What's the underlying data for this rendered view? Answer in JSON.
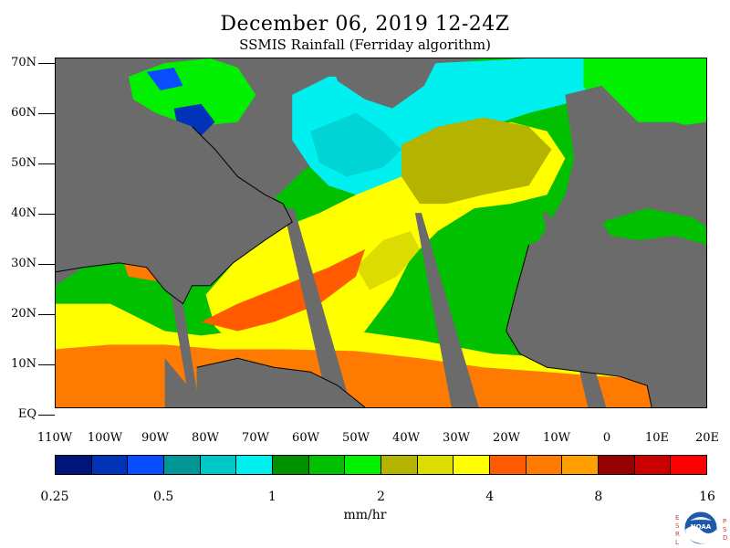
{
  "header": {
    "title": "December 06, 2019 12-24Z",
    "subtitle": "SSMIS Rainfall (Ferriday algorithm)"
  },
  "axes": {
    "latitude_labels": [
      "70N",
      "60N",
      "50N",
      "40N",
      "30N",
      "20N",
      "10N",
      "EQ"
    ],
    "longitude_labels": [
      "110W",
      "100W",
      "90W",
      "80W",
      "70W",
      "60W",
      "50W",
      "40W",
      "30W",
      "20W",
      "10W",
      "0",
      "10E",
      "20E"
    ]
  },
  "colorbar": {
    "colors": [
      "#00157a",
      "#0033b8",
      "#0a4dff",
      "#009696",
      "#00c8c8",
      "#00f0f0",
      "#009100",
      "#00c000",
      "#00f000",
      "#b4b400",
      "#dcdc00",
      "#ffff00",
      "#ff5a00",
      "#ff7a00",
      "#ffa000",
      "#960000",
      "#c80000",
      "#ff0000"
    ],
    "tick_labels": [
      "0.25",
      "0.5",
      "1",
      "2",
      "4",
      "8",
      "16"
    ],
    "units": "mm/hr"
  },
  "logo": {
    "left_letters": [
      "E",
      "S",
      "R",
      "L"
    ],
    "right_letters": [
      "P",
      "S",
      "D"
    ],
    "center_text": "NOAA"
  },
  "colors": {
    "land": "#6b6b6b",
    "no_data_swath_gap": "#6b6b6b",
    "coastline": "#000000"
  }
}
